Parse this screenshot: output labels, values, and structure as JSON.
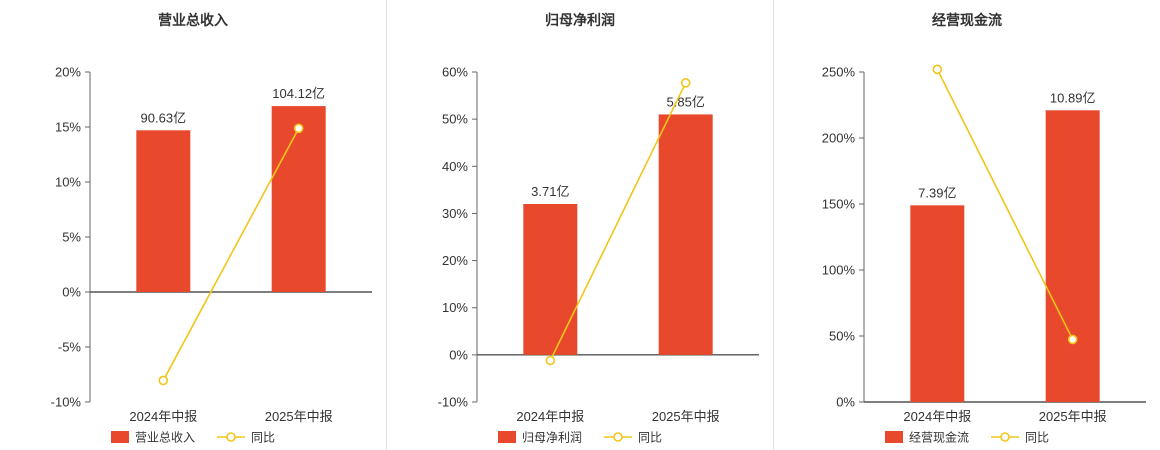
{
  "colors": {
    "bar": "#e8492d",
    "line": "#f2c51a",
    "marker_fill": "#ffffff",
    "axis": "#666666",
    "baseline": "#555555",
    "text": "#333333",
    "divider": "#e0e0e0"
  },
  "chart_data": [
    {
      "type": "bar+line",
      "title": "营业总收入",
      "categories": [
        "2024年中报",
        "2025年中报"
      ],
      "ylim": [
        -10,
        20
      ],
      "yticks": [
        20,
        15,
        10,
        5,
        0,
        -5,
        -10
      ],
      "ytick_suffix": "%",
      "legend_position": "bottom",
      "grid": false,
      "series": [
        {
          "name": "营业总收入",
          "type": "bar",
          "values": [
            14.7,
            16.9
          ],
          "labels": [
            "90.63亿",
            "104.12亿"
          ]
        },
        {
          "name": "同比",
          "type": "line",
          "values": [
            -8.04,
            14.88
          ]
        }
      ]
    },
    {
      "type": "bar+line",
      "title": "归母净利润",
      "categories": [
        "2024年中报",
        "2025年中报"
      ],
      "ylim": [
        -10,
        60
      ],
      "yticks": [
        60,
        50,
        40,
        30,
        20,
        10,
        0,
        -10
      ],
      "ytick_suffix": "%",
      "legend_position": "bottom",
      "grid": false,
      "series": [
        {
          "name": "归母净利润",
          "type": "bar",
          "values": [
            32,
            51
          ],
          "labels": [
            "3.71亿",
            "5.85亿"
          ]
        },
        {
          "name": "同比",
          "type": "line",
          "values": [
            -1.2,
            57.7
          ]
        }
      ]
    },
    {
      "type": "bar+line",
      "title": "经营现金流",
      "categories": [
        "2024年中报",
        "2025年中报"
      ],
      "ylim": [
        0,
        250
      ],
      "yticks": [
        250,
        200,
        150,
        100,
        50,
        0
      ],
      "ytick_suffix": "%",
      "legend_position": "bottom",
      "grid": false,
      "series": [
        {
          "name": "经营现金流",
          "type": "bar",
          "values": [
            149,
            221
          ],
          "labels": [
            "7.39亿",
            "10.89亿"
          ]
        },
        {
          "name": "同比",
          "type": "line",
          "values": [
            252,
            47.4
          ]
        }
      ]
    }
  ]
}
